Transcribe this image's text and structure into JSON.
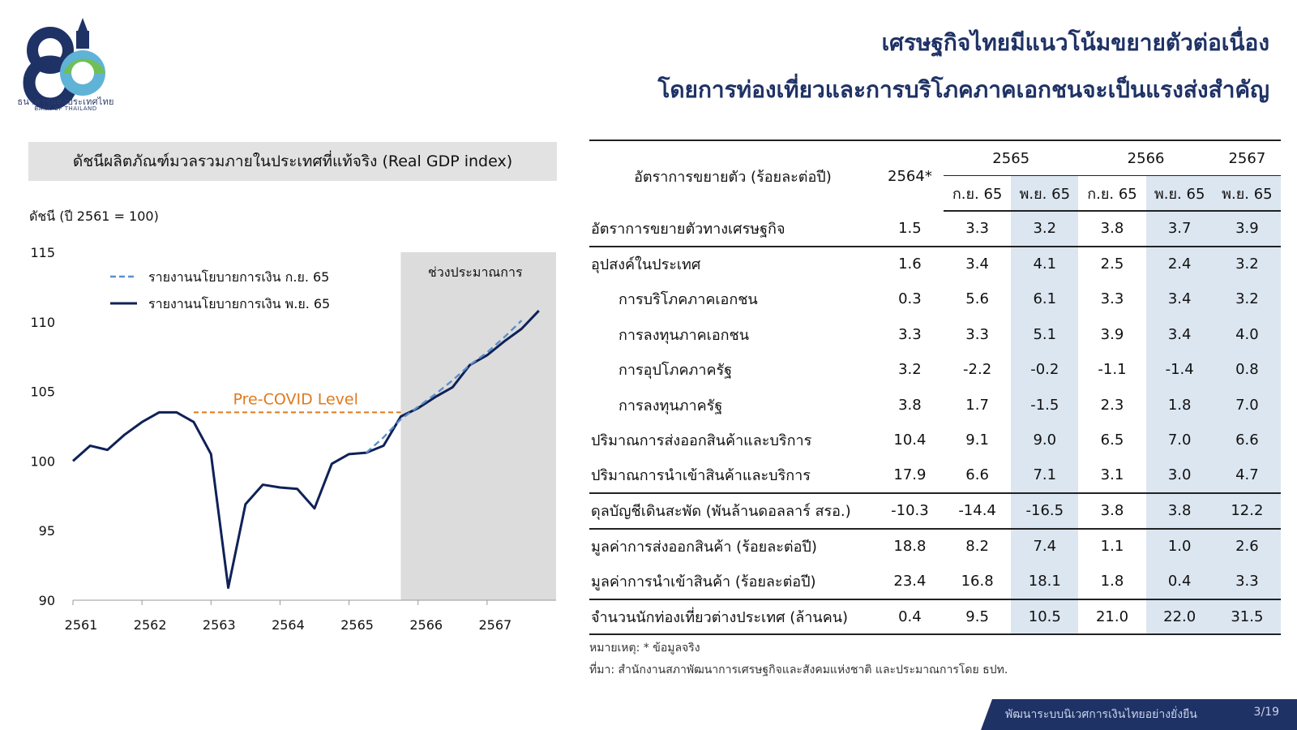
{
  "logo": {
    "number": "80",
    "name_th": "ธนาคารแห่งประเทศไทย",
    "name_en": "BANK OF THAILAND"
  },
  "title": {
    "line1": "เศรษฐกิจไทยมีแนวโน้มขยายตัวต่อเนื่อง",
    "line2": "โดยการท่องเที่ยวและการบริโภคภาคเอกชนจะเป็นแรงส่งสำคัญ"
  },
  "chart_data": {
    "type": "line",
    "title": "ดัชนีผลิตภัณฑ์มวลรวมภายในประเทศที่แท้จริง (Real GDP index)",
    "ylabel": "ดัชนี (ปี 2561 = 100)",
    "ylim": [
      90,
      115
    ],
    "yticks": [
      "90",
      "95",
      "100",
      "105",
      "110",
      "115"
    ],
    "xticks": [
      "2561",
      "2562",
      "2563",
      "2564",
      "2565",
      "2566",
      "2567"
    ],
    "xlim": [
      2561,
      2568
    ],
    "forecast_region": {
      "label": "ช่วงประมาณการ",
      "start": 2565.75,
      "end": 2568
    },
    "reference_line": {
      "label": "Pre-COVID Level",
      "value": 103.5,
      "x_start": 2562.75,
      "x_end": 2565.75,
      "color": "#e07a1e"
    },
    "legend_position": "top-left",
    "series": [
      {
        "name": "รายงานนโยบายการเงิน พ.ย. 65",
        "style": "solid",
        "color": "#0f2157",
        "x": [
          2561,
          2561.25,
          2561.5,
          2561.75,
          2562,
          2562.25,
          2562.5,
          2562.75,
          2563,
          2563.25,
          2563.5,
          2563.75,
          2564,
          2564.25,
          2564.5,
          2564.75,
          2565,
          2565.25,
          2565.5,
          2565.75,
          2566,
          2566.25,
          2566.5,
          2566.75,
          2567,
          2567.25,
          2567.5,
          2567.75
        ],
        "values": [
          100.0,
          101.1,
          100.8,
          101.9,
          102.8,
          103.5,
          103.5,
          102.8,
          100.5,
          90.9,
          96.9,
          98.3,
          98.1,
          98.0,
          96.6,
          99.8,
          100.5,
          100.6,
          101.1,
          103.2,
          103.8,
          104.6,
          105.3,
          106.9,
          107.6,
          108.6,
          109.5,
          110.8
        ]
      },
      {
        "name": "รายงานนโยบายการเงิน ก.ย. 65",
        "style": "dashed",
        "color": "#5b8fc9",
        "x": [
          2565.25,
          2565.5,
          2565.75,
          2566,
          2566.25,
          2566.5,
          2566.75,
          2567,
          2567.25,
          2567.5
        ],
        "values": [
          100.6,
          101.7,
          103.0,
          103.9,
          104.8,
          105.8,
          106.9,
          107.8,
          108.9,
          110.1
        ]
      }
    ]
  },
  "table": {
    "header_label": "อัตราการขยายตัว (ร้อยละต่อปี)",
    "col_2564": "2564*",
    "groups": [
      "2565",
      "2566",
      "2567"
    ],
    "subheads": [
      "ก.ย. 65",
      "พ.ย. 65",
      "ก.ย. 65",
      "พ.ย. 65",
      "พ.ย. 65"
    ],
    "rows": [
      {
        "label": "อัตราการขยายตัวทางเศรษฐกิจ",
        "values": [
          "1.5",
          "3.3",
          "3.2",
          "3.8",
          "3.7",
          "3.9"
        ]
      },
      {
        "label": "อุปสงค์ในประเทศ",
        "values": [
          "1.6",
          "3.4",
          "4.1",
          "2.5",
          "2.4",
          "3.2"
        ]
      },
      {
        "label": "การบริโภคภาคเอกชน",
        "values": [
          "0.3",
          "5.6",
          "6.1",
          "3.3",
          "3.4",
          "3.2"
        ]
      },
      {
        "label": "การลงทุนภาคเอกชน",
        "values": [
          "3.3",
          "3.3",
          "5.1",
          "3.9",
          "3.4",
          "4.0"
        ]
      },
      {
        "label": "การอุปโภคภาครัฐ",
        "values": [
          "3.2",
          "-2.2",
          "-0.2",
          "-1.1",
          "-1.4",
          "0.8"
        ]
      },
      {
        "label": "การลงทุนภาครัฐ",
        "values": [
          "3.8",
          "1.7",
          "-1.5",
          "2.3",
          "1.8",
          "7.0"
        ]
      },
      {
        "label": "ปริมาณการส่งออกสินค้าและบริการ",
        "values": [
          "10.4",
          "9.1",
          "9.0",
          "6.5",
          "7.0",
          "6.6"
        ]
      },
      {
        "label": "ปริมาณการนำเข้าสินค้าและบริการ",
        "values": [
          "17.9",
          "6.6",
          "7.1",
          "3.1",
          "3.0",
          "4.7"
        ]
      },
      {
        "label": "ดุลบัญชีเดินสะพัด (พันล้านดอลลาร์ สรอ.)",
        "values": [
          "-10.3",
          "-14.4",
          "-16.5",
          "3.8",
          "3.8",
          "12.2"
        ]
      },
      {
        "label": "มูลค่าการส่งออกสินค้า (ร้อยละต่อปี)",
        "values": [
          "18.8",
          "8.2",
          "7.4",
          "1.1",
          "1.0",
          "2.6"
        ]
      },
      {
        "label": "มูลค่าการนำเข้าสินค้า (ร้อยละต่อปี)",
        "values": [
          "23.4",
          "16.8",
          "18.1",
          "1.8",
          "0.4",
          "3.3"
        ]
      },
      {
        "label": "จำนวนนักท่องเที่ยวต่างประเทศ (ล้านคน)",
        "values": [
          "0.4",
          "9.5",
          "10.5",
          "21.0",
          "22.0",
          "31.5"
        ]
      }
    ]
  },
  "notes": {
    "note": "หมายเหตุ: * ข้อมูลจริง",
    "source": "ที่มา: สำนักงานสภาพัฒนาการเศรษฐกิจและสังคมแห่งชาติ และประมาณการโดย ธปท."
  },
  "footer": {
    "text": "พัฒนาระบบนิเวศการเงินไทยอย่างยั่งยืน",
    "page": "3/19"
  }
}
